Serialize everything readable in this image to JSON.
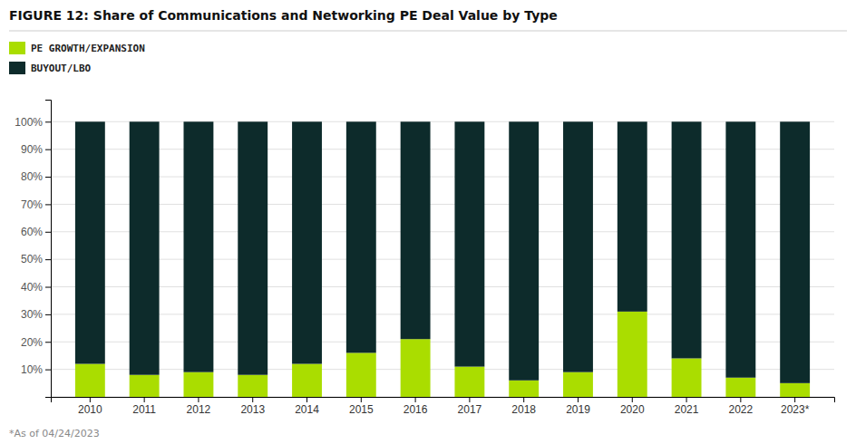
{
  "chart_data": {
    "type": "bar",
    "stacked": true,
    "title": "FIGURE 12:  Share of Communications and Networking PE Deal Value by Type",
    "footnote": "*As of 04/24/2023",
    "categories": [
      "2010",
      "2011",
      "2012",
      "2013",
      "2014",
      "2015",
      "2016",
      "2017",
      "2018",
      "2019",
      "2020",
      "2021",
      "2022",
      "2023*"
    ],
    "series": [
      {
        "name": "PE GROWTH/EXPANSION",
        "color": "#aadd00",
        "values": [
          12,
          8,
          9,
          8,
          12,
          16,
          21,
          11,
          6,
          9,
          31,
          14,
          7,
          5
        ]
      },
      {
        "name": "BUYOUT/LBO",
        "color": "#0d2b2b",
        "values": [
          88,
          92,
          91,
          92,
          88,
          84,
          79,
          89,
          94,
          91,
          69,
          86,
          93,
          95
        ]
      }
    ],
    "ylim": [
      0,
      108
    ],
    "yticks": [
      {
        "value": 0,
        "label": ""
      },
      {
        "value": 10,
        "label": "10%"
      },
      {
        "value": 20,
        "label": "20%"
      },
      {
        "value": 30,
        "label": "30%"
      },
      {
        "value": 40,
        "label": "40%"
      },
      {
        "value": 50,
        "label": "50%"
      },
      {
        "value": 60,
        "label": "60%"
      },
      {
        "value": 70,
        "label": "70%"
      },
      {
        "value": 80,
        "label": "80%"
      },
      {
        "value": 90,
        "label": "90%"
      },
      {
        "value": 100,
        "label": "100%"
      }
    ],
    "grid": true,
    "legend": "upper left"
  }
}
